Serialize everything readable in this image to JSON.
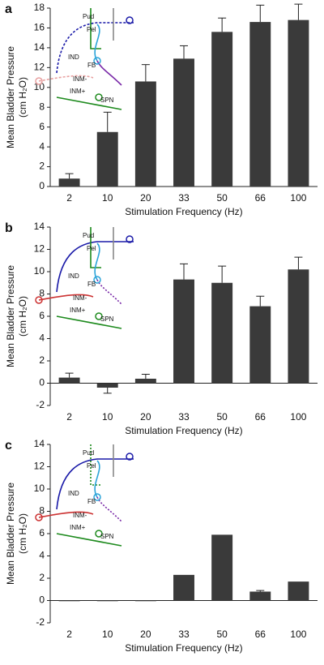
{
  "chart_data": [
    {
      "type": "bar",
      "panel_label": "a",
      "xlabel": "Stimulation Frequency (Hz)",
      "ylabel": [
        "Mean Bladder Pressure",
        "(cm H₂O)"
      ],
      "categories": [
        "2",
        "10",
        "20",
        "33",
        "50",
        "66",
        "100"
      ],
      "values": [
        0.8,
        5.5,
        10.6,
        12.9,
        15.6,
        16.6,
        16.8
      ],
      "errors": [
        0.5,
        2.0,
        1.7,
        1.3,
        1.4,
        1.7,
        1.6
      ],
      "color": "#3a3a3a",
      "ylim": [
        0,
        18
      ],
      "yticks": [
        0,
        2,
        4,
        6,
        8,
        10,
        12,
        14,
        16,
        18
      ],
      "annotations": [
        "Pud",
        "Pel",
        "IND",
        "FB",
        "INM-",
        "INM+",
        "SPN"
      ]
    },
    {
      "type": "bar",
      "panel_label": "b",
      "xlabel": "Stimulation Frequency (Hz)",
      "ylabel": [
        "Mean Bladder Pressure",
        "(cm H₂O)"
      ],
      "categories": [
        "2",
        "10",
        "20",
        "33",
        "50",
        "66",
        "100"
      ],
      "values": [
        0.5,
        -0.4,
        0.4,
        9.3,
        9.0,
        6.9,
        10.2
      ],
      "errors": [
        0.4,
        0.5,
        0.4,
        1.4,
        1.5,
        0.9,
        1.1
      ],
      "color": "#3a3a3a",
      "ylim": [
        -2,
        14
      ],
      "yticks": [
        -2,
        0,
        2,
        4,
        6,
        8,
        10,
        12,
        14
      ],
      "annotations": [
        "Pud",
        "Pel",
        "IND",
        "FB",
        "INM-",
        "INM+",
        "SPN"
      ]
    },
    {
      "type": "bar",
      "panel_label": "c",
      "xlabel": "Stimulation Frequency (Hz)",
      "ylabel": [
        "Mean Bladder Pressure",
        "(cm H₂O)"
      ],
      "categories": [
        "2",
        "10",
        "20",
        "33",
        "50",
        "66",
        "100"
      ],
      "values": [
        0,
        0,
        -0.05,
        2.3,
        5.9,
        0.8,
        1.7
      ],
      "errors": [
        null,
        null,
        null,
        null,
        null,
        0.1,
        null
      ],
      "color": "#3a3a3a",
      "ylim": [
        -2,
        14
      ],
      "yticks": [
        -2,
        0,
        2,
        4,
        6,
        8,
        10,
        12,
        14
      ],
      "annotations": [
        "Pud",
        "Pel",
        "IND",
        "FB",
        "INM-",
        "INM+",
        "SPN"
      ]
    }
  ]
}
